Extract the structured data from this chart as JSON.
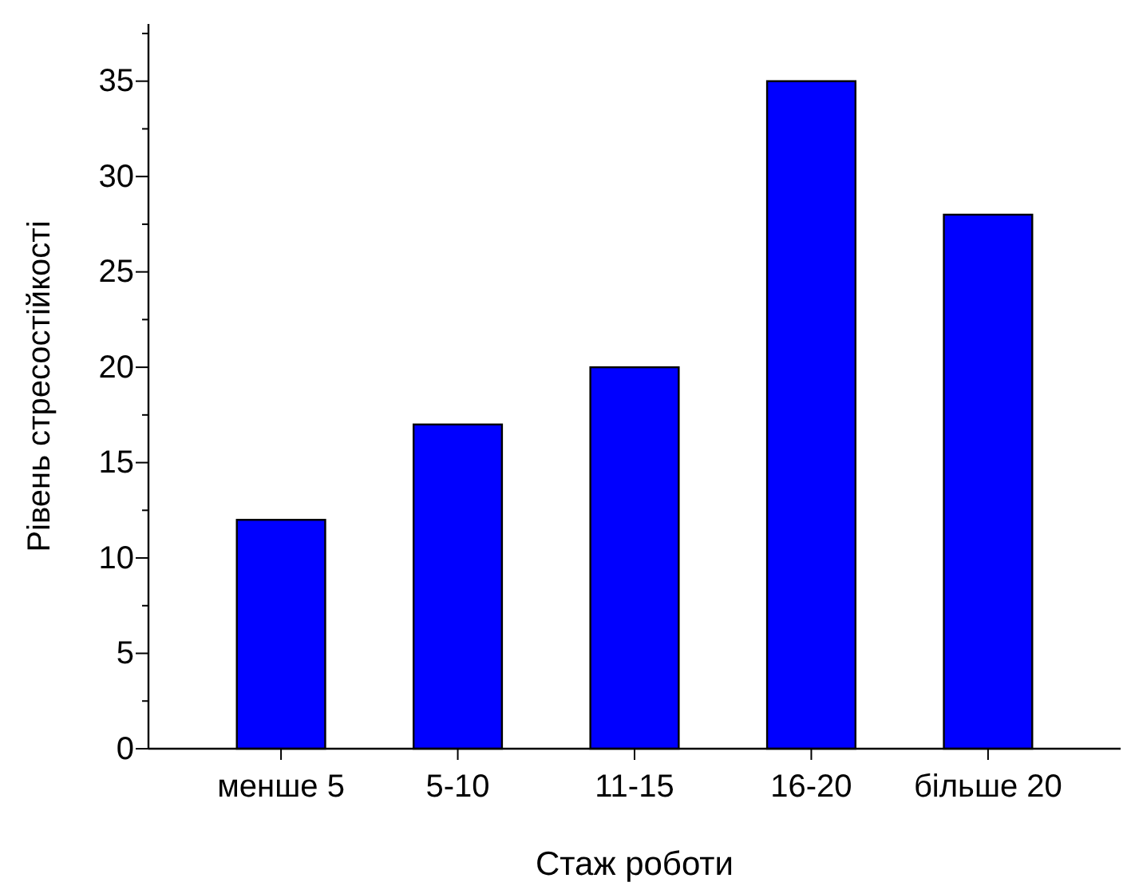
{
  "chart_data": {
    "type": "bar",
    "xlabel": "Стаж роботи",
    "ylabel": "Рівень стресостійкості",
    "categories": [
      "менше 5",
      "5-10",
      "11-15",
      "16-20",
      "більше 20"
    ],
    "values": [
      12,
      17,
      20,
      35,
      28
    ],
    "color": "#0000ff",
    "ylim": [
      0,
      38
    ],
    "yticks": [
      0,
      {
        "value": 2.5,
        "label": null
      },
      5,
      {
        "value": 7.5,
        "label": null
      },
      10,
      {
        "value": 12.5,
        "label": null
      },
      15,
      {
        "value": 17.5,
        "label": null
      },
      20,
      {
        "value": 22.5,
        "label": null
      },
      25,
      {
        "value": 27.5,
        "label": null
      },
      30,
      {
        "value": 32.5,
        "label": null
      },
      35,
      {
        "value": 37.5,
        "label": null
      }
    ],
    "grid": false
  }
}
